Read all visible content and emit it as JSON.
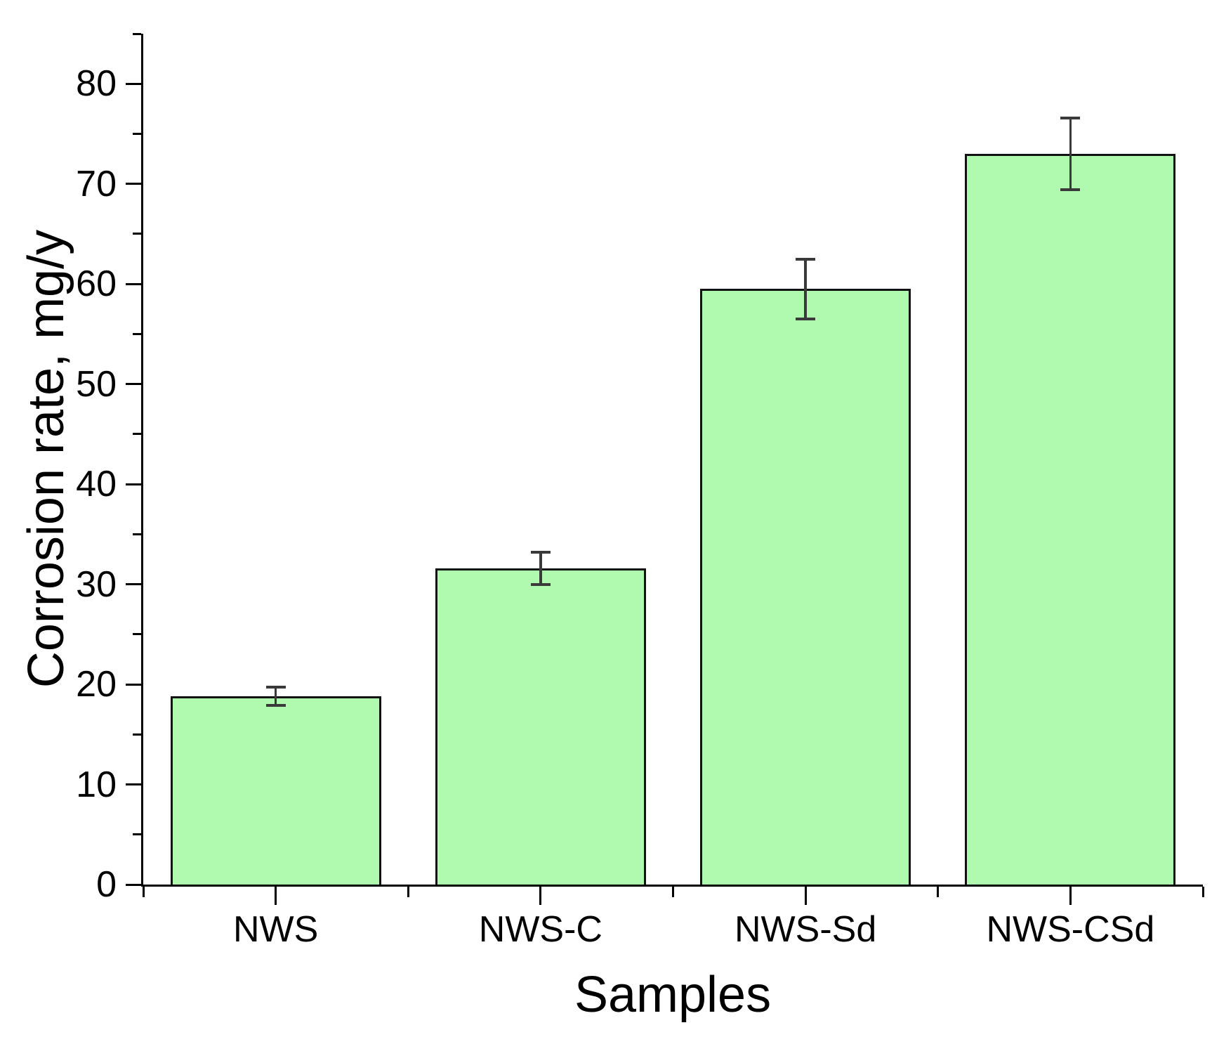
{
  "chart_data": {
    "type": "bar",
    "title": "",
    "xlabel": "Samples",
    "ylabel": "Corrosion rate, mg/y",
    "categories": [
      "NWS",
      "NWS-C",
      "NWS-Sd",
      "NWS-CSd"
    ],
    "values": [
      18.8,
      31.6,
      59.5,
      73.0
    ],
    "errors": [
      0.9,
      1.6,
      3.0,
      3.6
    ],
    "ylim": [
      0,
      85
    ],
    "y_major_ticks": [
      0,
      10,
      20,
      30,
      40,
      50,
      60,
      70,
      80
    ],
    "y_minor_step": 5,
    "grid": false,
    "legend": null,
    "bar_color": "#b0fab0",
    "bar_border_color": "#121212",
    "error_color": "#3a3a3a",
    "axis_color": "#000000",
    "text_color": "#000000"
  }
}
